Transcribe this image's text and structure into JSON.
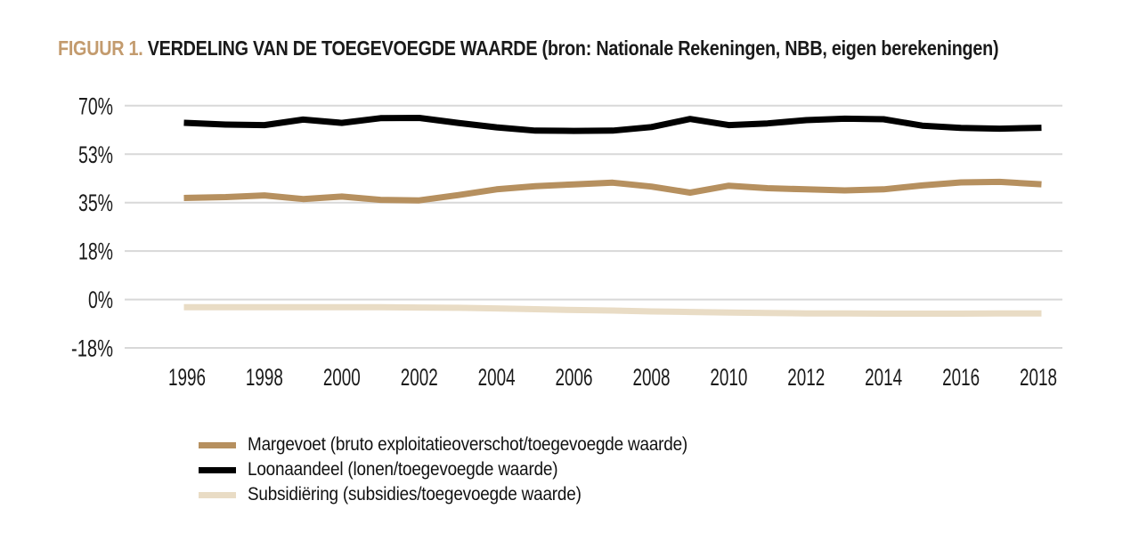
{
  "header": {
    "prefix": "FIGUUR 1.",
    "title": "VERDELING VAN DE TOEGEVOEGDE WAARDE (bron: Nationale Rekeningen, NBB, eigen berekeningen)"
  },
  "colors": {
    "title_prefix": "#c39b6e",
    "title_text": "#1a1a1a",
    "gridline": "#d8d8d8",
    "axis_text": "#1a1a1a",
    "background": "#ffffff"
  },
  "chart_data": {
    "type": "line",
    "title": "FIGUUR 1. VERDELING VAN DE TOEGEVOEGDE WAARDE (bron: Nationale Rekeningen, NBB, eigen berekeningen)",
    "xlabel": "",
    "ylabel": "",
    "ylim": [
      -17.5,
      70
    ],
    "grid": "horizontal-only",
    "legend_position": "bottom-left",
    "x": [
      1996,
      1997,
      1998,
      1999,
      2000,
      2001,
      2002,
      2003,
      2004,
      2005,
      2006,
      2007,
      2008,
      2009,
      2010,
      2011,
      2012,
      2013,
      2014,
      2015,
      2016,
      2017,
      2018
    ],
    "x_tick_labels": [
      "1996",
      "1998",
      "2000",
      "2002",
      "2004",
      "2006",
      "2008",
      "2010",
      "2012",
      "2014",
      "2016",
      "2018"
    ],
    "y_ticks": [
      {
        "value": 70,
        "label": "70%"
      },
      {
        "value": 52.5,
        "label": "53%"
      },
      {
        "value": 35,
        "label": "35%"
      },
      {
        "value": 17.5,
        "label": "18%"
      },
      {
        "value": 0,
        "label": "0%"
      },
      {
        "value": -17.5,
        "label": "-18%"
      }
    ],
    "series": [
      {
        "name": "Margevoet (bruto exploitatieoverschot/toegevoegde waarde)",
        "color": "#b6905f",
        "values": [
          36.7,
          37.0,
          37.6,
          36.3,
          37.2,
          36.0,
          35.8,
          37.7,
          39.8,
          40.9,
          41.6,
          42.2,
          40.8,
          38.6,
          41.1,
          40.2,
          39.8,
          39.4,
          39.8,
          41.2,
          42.3,
          42.5,
          41.7
        ]
      },
      {
        "name": "Loonaandeel (lonen/toegevoegde waarde)",
        "color": "#000000",
        "values": [
          63.8,
          63.2,
          63.0,
          65.0,
          63.8,
          65.5,
          65.6,
          63.8,
          62.2,
          61.0,
          60.9,
          61.0,
          62.3,
          65.2,
          63.0,
          63.6,
          64.8,
          65.3,
          65.1,
          62.8,
          62.0,
          61.7,
          62.0
        ]
      },
      {
        "name": "Subsidiëring (subsidies/toegevoegde waarde)",
        "color": "#e9dcc5",
        "values": [
          -2.8,
          -2.8,
          -2.8,
          -2.8,
          -2.8,
          -2.8,
          -2.9,
          -3.0,
          -3.2,
          -3.5,
          -3.8,
          -4.0,
          -4.3,
          -4.5,
          -4.7,
          -4.9,
          -5.0,
          -5.0,
          -5.1,
          -5.1,
          -5.1,
          -5.0,
          -5.0
        ]
      }
    ]
  }
}
